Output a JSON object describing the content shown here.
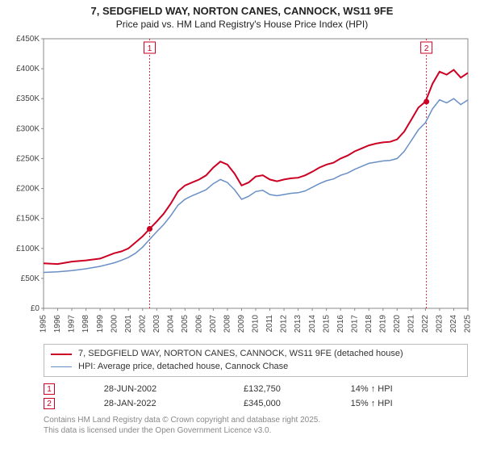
{
  "title": {
    "line1": "7, SEDGFIELD WAY, NORTON CANES, CANNOCK, WS11 9FE",
    "line2": "Price paid vs. HM Land Registry's House Price Index (HPI)"
  },
  "chart": {
    "type": "line",
    "background_color": "#ffffff",
    "grid_color": "#dddddd",
    "axis_color": "#888888",
    "label_fontsize": 10,
    "x_axis": {
      "min": 1995,
      "max": 2025,
      "tick_step": 1,
      "labels": [
        "1995",
        "1996",
        "1997",
        "1998",
        "1999",
        "2000",
        "2001",
        "2002",
        "2003",
        "2004",
        "2005",
        "2006",
        "2007",
        "2008",
        "2009",
        "2010",
        "2011",
        "2012",
        "2013",
        "2014",
        "2015",
        "2016",
        "2017",
        "2018",
        "2019",
        "2020",
        "2021",
        "2022",
        "2023",
        "2024",
        "2025"
      ],
      "label_rotation": -90
    },
    "y_axis": {
      "min": 0,
      "max": 450000,
      "tick_step": 50000,
      "labels": [
        "£0",
        "£50K",
        "£100K",
        "£150K",
        "£200K",
        "£250K",
        "£300K",
        "£350K",
        "£400K",
        "£450K"
      ]
    },
    "series": [
      {
        "name": "price_paid",
        "color": "#cc0022",
        "line_width": 2,
        "data": [
          [
            1995,
            75000
          ],
          [
            1996,
            74000
          ],
          [
            1997,
            78000
          ],
          [
            1998,
            80000
          ],
          [
            1999,
            83000
          ],
          [
            2000,
            92000
          ],
          [
            2000.5,
            95000
          ],
          [
            2001,
            100000
          ],
          [
            2001.5,
            110000
          ],
          [
            2002,
            120000
          ],
          [
            2002.5,
            132750
          ],
          [
            2003,
            145000
          ],
          [
            2003.5,
            158000
          ],
          [
            2004,
            175000
          ],
          [
            2004.5,
            195000
          ],
          [
            2005,
            205000
          ],
          [
            2005.5,
            210000
          ],
          [
            2006,
            215000
          ],
          [
            2006.5,
            222000
          ],
          [
            2007,
            235000
          ],
          [
            2007.5,
            245000
          ],
          [
            2008,
            240000
          ],
          [
            2008.5,
            225000
          ],
          [
            2009,
            205000
          ],
          [
            2009.5,
            210000
          ],
          [
            2010,
            220000
          ],
          [
            2010.5,
            222000
          ],
          [
            2011,
            215000
          ],
          [
            2011.5,
            212000
          ],
          [
            2012,
            215000
          ],
          [
            2012.5,
            217000
          ],
          [
            2013,
            218000
          ],
          [
            2013.5,
            222000
          ],
          [
            2014,
            228000
          ],
          [
            2014.5,
            235000
          ],
          [
            2015,
            240000
          ],
          [
            2015.5,
            243000
          ],
          [
            2016,
            250000
          ],
          [
            2016.5,
            255000
          ],
          [
            2017,
            262000
          ],
          [
            2017.5,
            267000
          ],
          [
            2018,
            272000
          ],
          [
            2018.5,
            275000
          ],
          [
            2019,
            277000
          ],
          [
            2019.5,
            278000
          ],
          [
            2020,
            282000
          ],
          [
            2020.5,
            295000
          ],
          [
            2021,
            315000
          ],
          [
            2021.5,
            335000
          ],
          [
            2022,
            345000
          ],
          [
            2022.5,
            375000
          ],
          [
            2023,
            395000
          ],
          [
            2023.5,
            390000
          ],
          [
            2024,
            398000
          ],
          [
            2024.5,
            385000
          ],
          [
            2025,
            393000
          ]
        ]
      },
      {
        "name": "hpi",
        "color": "#6a8fc5",
        "line_width": 1.5,
        "data": [
          [
            1995,
            60000
          ],
          [
            1996,
            61000
          ],
          [
            1997,
            63000
          ],
          [
            1998,
            66000
          ],
          [
            1999,
            70000
          ],
          [
            2000,
            76000
          ],
          [
            2000.5,
            80000
          ],
          [
            2001,
            85000
          ],
          [
            2001.5,
            92000
          ],
          [
            2002,
            102000
          ],
          [
            2002.5,
            115000
          ],
          [
            2003,
            128000
          ],
          [
            2003.5,
            140000
          ],
          [
            2004,
            155000
          ],
          [
            2004.5,
            172000
          ],
          [
            2005,
            182000
          ],
          [
            2005.5,
            188000
          ],
          [
            2006,
            193000
          ],
          [
            2006.5,
            198000
          ],
          [
            2007,
            208000
          ],
          [
            2007.5,
            215000
          ],
          [
            2008,
            210000
          ],
          [
            2008.5,
            198000
          ],
          [
            2009,
            182000
          ],
          [
            2009.5,
            187000
          ],
          [
            2010,
            195000
          ],
          [
            2010.5,
            197000
          ],
          [
            2011,
            190000
          ],
          [
            2011.5,
            188000
          ],
          [
            2012,
            190000
          ],
          [
            2012.5,
            192000
          ],
          [
            2013,
            193000
          ],
          [
            2013.5,
            196000
          ],
          [
            2014,
            202000
          ],
          [
            2014.5,
            208000
          ],
          [
            2015,
            213000
          ],
          [
            2015.5,
            216000
          ],
          [
            2016,
            222000
          ],
          [
            2016.5,
            226000
          ],
          [
            2017,
            232000
          ],
          [
            2017.5,
            237000
          ],
          [
            2018,
            242000
          ],
          [
            2018.5,
            244000
          ],
          [
            2019,
            246000
          ],
          [
            2019.5,
            247000
          ],
          [
            2020,
            250000
          ],
          [
            2020.5,
            262000
          ],
          [
            2021,
            280000
          ],
          [
            2021.5,
            298000
          ],
          [
            2022,
            310000
          ],
          [
            2022.5,
            333000
          ],
          [
            2023,
            348000
          ],
          [
            2023.5,
            343000
          ],
          [
            2024,
            350000
          ],
          [
            2024.5,
            340000
          ],
          [
            2025,
            348000
          ]
        ]
      }
    ],
    "markers": [
      {
        "n": "1",
        "x": 2002.5,
        "y": 132750,
        "color": "#cc0022"
      },
      {
        "n": "2",
        "x": 2022.07,
        "y": 345000,
        "color": "#cc0022"
      }
    ],
    "sale_point_color": "#cc0022"
  },
  "legend": {
    "items": [
      {
        "color": "#cc0022",
        "width": 2,
        "label": "7, SEDGFIELD WAY, NORTON CANES, CANNOCK, WS11 9FE (detached house)"
      },
      {
        "color": "#6a8fc5",
        "width": 1.5,
        "label": "HPI: Average price, detached house, Cannock Chase"
      }
    ]
  },
  "sales": [
    {
      "n": "1",
      "date": "28-JUN-2002",
      "price": "£132,750",
      "delta": "14% ↑ HPI",
      "box_color": "#cc0022"
    },
    {
      "n": "2",
      "date": "28-JAN-2022",
      "price": "£345,000",
      "delta": "15% ↑ HPI",
      "box_color": "#cc0022"
    }
  ],
  "footer": {
    "line1": "Contains HM Land Registry data © Crown copyright and database right 2025.",
    "line2": "This data is licensed under the Open Government Licence v3.0."
  }
}
